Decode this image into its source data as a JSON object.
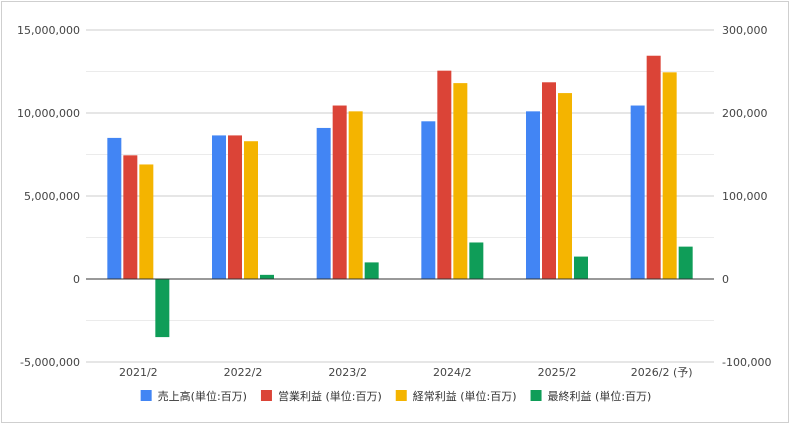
{
  "chart_data": {
    "type": "bar",
    "categories": [
      "2021/2",
      "2022/2",
      "2023/2",
      "2024/2",
      "2025/2",
      "2026/2 (予)"
    ],
    "series": [
      {
        "name": "売上高(単位:百万)",
        "axis": "left",
        "color": "#4285f4",
        "values": [
          8500000,
          8650000,
          9100000,
          9500000,
          10100000,
          10450000
        ]
      },
      {
        "name": "営業利益 (単位:百万)",
        "axis": "right",
        "color": "#db4437",
        "values": [
          149000,
          173000,
          209000,
          251000,
          237000,
          269000
        ]
      },
      {
        "name": "経常利益 (単位:百万)",
        "axis": "right",
        "color": "#f4b400",
        "values": [
          138000,
          166000,
          202000,
          236000,
          224000,
          249000
        ]
      },
      {
        "name": "最終利益 (単位:百万)",
        "axis": "right",
        "color": "#0f9d58",
        "values": [
          -70000,
          5000,
          20000,
          44000,
          27000,
          39000
        ]
      }
    ],
    "left_axis": {
      "ylim": [
        -5000000,
        15000000
      ],
      "ticks": [
        15000000,
        10000000,
        5000000,
        0,
        -5000000
      ],
      "tick_labels": [
        "15,000,000",
        "10,000,000",
        "5,000,000",
        "0",
        "-5,000,000"
      ]
    },
    "right_axis": {
      "ylim": [
        -100000,
        300000
      ],
      "ticks": [
        300000,
        200000,
        100000,
        0,
        -100000
      ],
      "tick_labels": [
        "300,000",
        "200,000",
        "100,000",
        "0",
        "-100,000"
      ]
    },
    "grid": true,
    "legend_position": "bottom"
  }
}
